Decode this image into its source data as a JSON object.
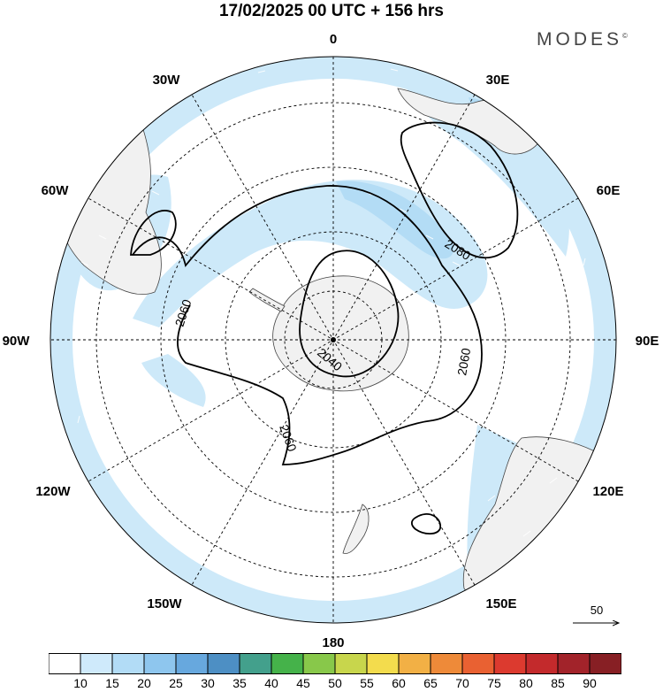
{
  "header": {
    "title": "17/02/2025  00 UTC  + 156 hrs",
    "brand": "MODES",
    "brand_mark": "©"
  },
  "map": {
    "projection": "south-polar-stereographic",
    "meridian_labels": [
      {
        "id": "0",
        "text": "0"
      },
      {
        "id": "30e",
        "text": "30E"
      },
      {
        "id": "60e",
        "text": "60E"
      },
      {
        "id": "90e",
        "text": "90E"
      },
      {
        "id": "120e",
        "text": "120E"
      },
      {
        "id": "150e",
        "text": "150E"
      },
      {
        "id": "180",
        "text": "180"
      },
      {
        "id": "150w",
        "text": "150W"
      },
      {
        "id": "120w",
        "text": "120W"
      },
      {
        "id": "90w",
        "text": "90W"
      },
      {
        "id": "60w",
        "text": "60W"
      },
      {
        "id": "30w",
        "text": "30W"
      }
    ],
    "contour_labels": [
      "2040",
      "2060",
      "2060",
      "2060",
      "2080"
    ],
    "wind_reference": {
      "value": "50"
    },
    "colors": {
      "land": "#f1f1f1",
      "wind_shading": "#cde9f9",
      "wind_shading_strong": "#b3dcf5",
      "contour": "#000000",
      "grid": "#000000"
    }
  },
  "legend": {
    "bins": [
      {
        "label": "10",
        "color": "#ffffff"
      },
      {
        "label": "15",
        "color": "#cfeafb"
      },
      {
        "label": "20",
        "color": "#b2dcf6"
      },
      {
        "label": "25",
        "color": "#8ec6ee"
      },
      {
        "label": "30",
        "color": "#67a8de"
      },
      {
        "label": "35",
        "color": "#4d8fc4"
      },
      {
        "label": "40",
        "color": "#43a08c"
      },
      {
        "label": "45",
        "color": "#45b24a"
      },
      {
        "label": "50",
        "color": "#88c84a"
      },
      {
        "label": "55",
        "color": "#c8d64c"
      },
      {
        "label": "60",
        "color": "#f3dc4d"
      },
      {
        "label": "65",
        "color": "#f2b045"
      },
      {
        "label": "70",
        "color": "#ee8a39"
      },
      {
        "label": "75",
        "color": "#e96132"
      },
      {
        "label": "80",
        "color": "#dc3a2f"
      },
      {
        "label": "85",
        "color": "#c32a2c"
      },
      {
        "label": "90",
        "color": "#a2232a"
      },
      {
        "label": "",
        "color": "#871f24"
      }
    ]
  }
}
